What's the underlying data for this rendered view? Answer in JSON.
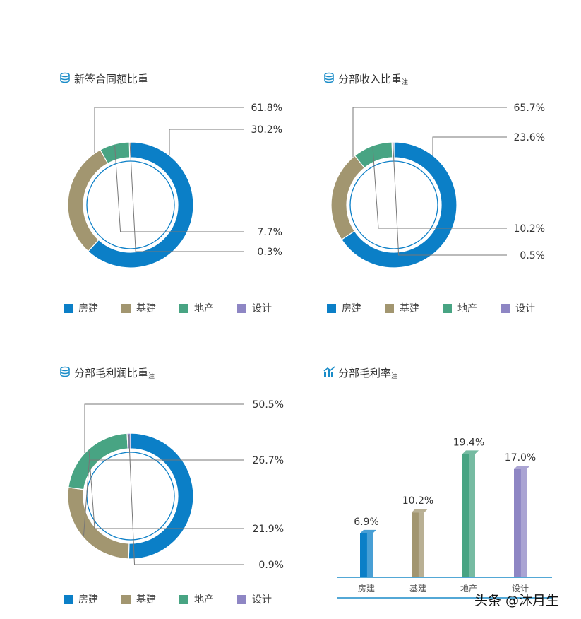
{
  "colors": {
    "房建": "#0b7fc7",
    "基建": "#a29670",
    "地产": "#48a483",
    "设计": "#8e86c4",
    "title_icon": "#1a8cc8"
  },
  "legend_labels": [
    "房建",
    "基建",
    "地产",
    "设计"
  ],
  "chart_data": [
    {
      "type": "pie",
      "title": "新签合同额比重",
      "title_sub": "",
      "icon": "coins-icon",
      "categories": [
        "房建",
        "基建",
        "地产",
        "设计"
      ],
      "values": [
        61.8,
        30.2,
        7.7,
        0.3
      ],
      "labels": [
        "61.8%",
        "30.2%",
        "7.7%",
        "0.3%"
      ],
      "legend_position": "bottom"
    },
    {
      "type": "pie",
      "title": "分部收入比重",
      "title_sub": "注",
      "icon": "coins-icon",
      "categories": [
        "房建",
        "基建",
        "地产",
        "设计"
      ],
      "values": [
        65.7,
        23.6,
        10.2,
        0.5
      ],
      "labels": [
        "65.7%",
        "23.6%",
        "10.2%",
        "0.5%"
      ],
      "legend_position": "bottom"
    },
    {
      "type": "pie",
      "title": "分部毛利润比重",
      "title_sub": "注",
      "icon": "coins-icon",
      "categories": [
        "房建",
        "基建",
        "地产",
        "设计"
      ],
      "values": [
        50.5,
        26.7,
        21.9,
        0.9
      ],
      "labels": [
        "50.5%",
        "26.7%",
        "21.9%",
        "0.9%"
      ],
      "legend_position": "bottom"
    },
    {
      "type": "bar",
      "title": "分部毛利率",
      "title_sub": "注",
      "icon": "bar-chart-icon",
      "categories": [
        "房建",
        "基建",
        "地产",
        "设计"
      ],
      "values": [
        6.9,
        10.2,
        19.4,
        17.0
      ],
      "labels": [
        "6.9%",
        "10.2%",
        "19.4%",
        "17.0%"
      ],
      "ylim": [
        0,
        20
      ]
    }
  ],
  "watermark": "头条 @沐月生"
}
